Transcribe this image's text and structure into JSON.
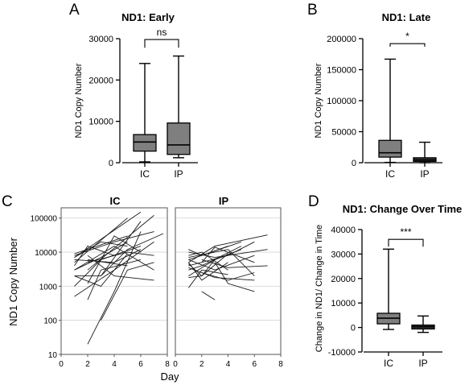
{
  "chart_data": [
    {
      "id": "A",
      "type": "box",
      "panel_label": "A",
      "title": "ND1: Early",
      "ylabel": "ND1 Copy Number",
      "ylim": [
        0,
        30000
      ],
      "yticks": [
        0,
        10000,
        20000,
        30000
      ],
      "tick_labels": [
        "0",
        "10000",
        "20000",
        "30000"
      ],
      "categories": [
        "IC",
        "IP"
      ],
      "boxes": [
        {
          "whisker_low": 200,
          "q1": 2800,
          "median": 5000,
          "q3": 6800,
          "whisker_high": 24000,
          "color": "#7f7f7f"
        },
        {
          "whisker_low": 1200,
          "q1": 2000,
          "median": 4300,
          "q3": 9600,
          "whisker_high": 25800,
          "color": "#7f7f7f"
        }
      ],
      "significance": {
        "label": "ns",
        "y": 29800,
        "drop": 2000
      }
    },
    {
      "id": "B",
      "type": "box",
      "panel_label": "B",
      "title": "ND1: Late",
      "ylabel": "ND1 Copy Number",
      "ylim": [
        0,
        200000
      ],
      "yticks": [
        0,
        50000,
        100000,
        150000,
        200000
      ],
      "tick_labels": [
        "0",
        "50000",
        "100000",
        "150000",
        "200000"
      ],
      "categories": [
        "IC",
        "IP"
      ],
      "boxes": [
        {
          "whisker_low": 500,
          "q1": 9000,
          "median": 16000,
          "q3": 36000,
          "whisker_high": 167000,
          "color": "#7f7f7f"
        },
        {
          "whisker_low": 0,
          "q1": 2000,
          "median": 4500,
          "q3": 8000,
          "whisker_high": 33000,
          "color": "#3f3f3f"
        }
      ],
      "significance": {
        "label": "*",
        "y": 192000,
        "drop": 5000
      }
    },
    {
      "id": "C",
      "type": "line",
      "panel_label": "C",
      "ylabel": "ND1 Copy Number",
      "xlabel": "Day",
      "yscale": "log",
      "ylim": [
        10,
        200000
      ],
      "xlim": [
        0,
        8
      ],
      "yticks": [
        10,
        100,
        1000,
        10000,
        100000
      ],
      "tick_labels_y": [
        "10",
        "100",
        "1000",
        "10000",
        "100000"
      ],
      "xticks": [
        0,
        2,
        4,
        6,
        8
      ],
      "tick_labels_x": [
        "0",
        "2",
        "4",
        "6",
        "8"
      ],
      "grid": true,
      "facets": [
        {
          "title": "IC",
          "series": [
            [
              [
                1,
                7000
              ],
              [
                6,
                150000
              ]
            ],
            [
              [
                1,
                5000
              ],
              [
                5,
                100000
              ]
            ],
            [
              [
                2,
                3000
              ],
              [
                7,
                120000
              ]
            ],
            [
              [
                1,
                2000
              ],
              [
                3,
                2000
              ],
              [
                6,
                80000
              ]
            ],
            [
              [
                2,
                20
              ],
              [
                4,
                700
              ],
              [
                6,
                40000
              ]
            ],
            [
              [
                1,
                8000
              ],
              [
                4,
                20000
              ],
              [
                7,
                40000
              ]
            ],
            [
              [
                1,
                3000
              ],
              [
                3,
                7000
              ],
              [
                5,
                20000
              ]
            ],
            [
              [
                1,
                1000
              ],
              [
                3,
                6000
              ],
              [
                6,
                15000
              ]
            ],
            [
              [
                1,
                500
              ],
              [
                4,
                3000
              ],
              [
                7,
                20000
              ]
            ],
            [
              [
                2,
                5000
              ],
              [
                5,
                10000
              ],
              [
                7,
                8000
              ]
            ],
            [
              [
                1,
                6000
              ],
              [
                4,
                5000
              ],
              [
                6,
                12000
              ]
            ],
            [
              [
                1,
                4000
              ],
              [
                2,
                15000
              ],
              [
                4,
                8000
              ]
            ],
            [
              [
                2,
                8000
              ],
              [
                4,
                2000
              ],
              [
                7,
                1500
              ]
            ],
            [
              [
                1,
                2000
              ],
              [
                3,
                1000
              ],
              [
                5,
                9000
              ]
            ],
            [
              [
                2,
                1200
              ],
              [
                4,
                30000
              ],
              [
                6,
                10000
              ]
            ],
            [
              [
                1,
                9000
              ],
              [
                5,
                30000
              ]
            ],
            [
              [
                3,
                100
              ],
              [
                5,
                3000
              ],
              [
                7,
                5000
              ]
            ],
            [
              [
                2,
                6000
              ],
              [
                5,
                4000
              ]
            ],
            [
              [
                1,
                3000
              ],
              [
                4,
                15000
              ],
              [
                7,
                3000
              ]
            ],
            [
              [
                2,
                400
              ],
              [
                3,
                3000
              ],
              [
                6,
                6000
              ]
            ],
            [
              [
                1,
                7000
              ],
              [
                3,
                20000
              ],
              [
                5,
                15000
              ]
            ],
            [
              [
                3,
                2000
              ],
              [
                5,
                12000
              ],
              [
                7.7,
                35000
              ]
            ]
          ]
        },
        {
          "title": "IP",
          "series": [
            [
              [
                1,
                5000
              ],
              [
                3,
                15000
              ],
              [
                7,
                32000
              ]
            ],
            [
              [
                1,
                6000
              ],
              [
                3,
                3000
              ],
              [
                6,
                8000
              ]
            ],
            [
              [
                1,
                4000
              ],
              [
                4,
                8000
              ],
              [
                6,
                20000
              ]
            ],
            [
              [
                1,
                2000
              ],
              [
                3,
                6000
              ],
              [
                5,
                12000
              ]
            ],
            [
              [
                1,
                8000
              ],
              [
                2,
                10000
              ],
              [
                4,
                3000
              ]
            ],
            [
              [
                1,
                3000
              ],
              [
                2,
                4000
              ],
              [
                5,
                15000
              ]
            ],
            [
              [
                1,
                10000
              ],
              [
                3,
                7000
              ],
              [
                7,
                12000
              ]
            ],
            [
              [
                1,
                5000
              ],
              [
                2,
                1500
              ],
              [
                4,
                5000
              ]
            ],
            [
              [
                2,
                5000
              ],
              [
                3,
                14000
              ],
              [
                6,
                5000
              ]
            ],
            [
              [
                1,
                7000
              ],
              [
                4,
                12000
              ],
              [
                6,
                2000
              ]
            ],
            [
              [
                1,
                1800
              ],
              [
                2,
                2000
              ],
              [
                4,
                9000
              ]
            ],
            [
              [
                2,
                6000
              ],
              [
                4,
                3500
              ],
              [
                7,
                4000
              ]
            ],
            [
              [
                1,
                3500
              ],
              [
                3,
                1800
              ],
              [
                6,
                1500
              ]
            ],
            [
              [
                2,
                700
              ],
              [
                3,
                400
              ]
            ],
            [
              [
                1,
                6000
              ],
              [
                2,
                8000
              ],
              [
                5,
                20000
              ]
            ],
            [
              [
                2,
                2500
              ],
              [
                4,
                1500
              ],
              [
                6,
                2500
              ]
            ],
            [
              [
                1,
                4500
              ],
              [
                2,
                2000
              ],
              [
                3,
                6000
              ]
            ],
            [
              [
                1,
                12000
              ],
              [
                2,
                8000
              ],
              [
                4,
                15000
              ]
            ],
            [
              [
                3,
                5000
              ],
              [
                4,
                1200
              ],
              [
                6,
                700
              ]
            ],
            [
              [
                1,
                900
              ],
              [
                2,
                3000
              ],
              [
                4,
                2200
              ]
            ]
          ]
        }
      ]
    },
    {
      "id": "D",
      "type": "box",
      "panel_label": "D",
      "title": "ND1: Change Over Time",
      "ylabel": "Change in ND1/ Change in Time",
      "ylim": [
        -10000,
        40000
      ],
      "yticks": [
        -10000,
        0,
        10000,
        20000,
        30000,
        40000
      ],
      "tick_labels": [
        "-10000",
        "0",
        "10000",
        "20000",
        "30000",
        "40000"
      ],
      "categories": [
        "IC",
        "IP"
      ],
      "boxes": [
        {
          "whisker_low": -800,
          "q1": 1500,
          "median": 3800,
          "q3": 5800,
          "whisker_high": 32000,
          "color": "#7f7f7f"
        },
        {
          "whisker_low": -2000,
          "q1": -600,
          "median": 300,
          "q3": 1000,
          "whisker_high": 4700,
          "color": "#3f3f3f"
        }
      ],
      "significance": {
        "label": "***",
        "y": 36000,
        "drop": 3000
      }
    }
  ]
}
